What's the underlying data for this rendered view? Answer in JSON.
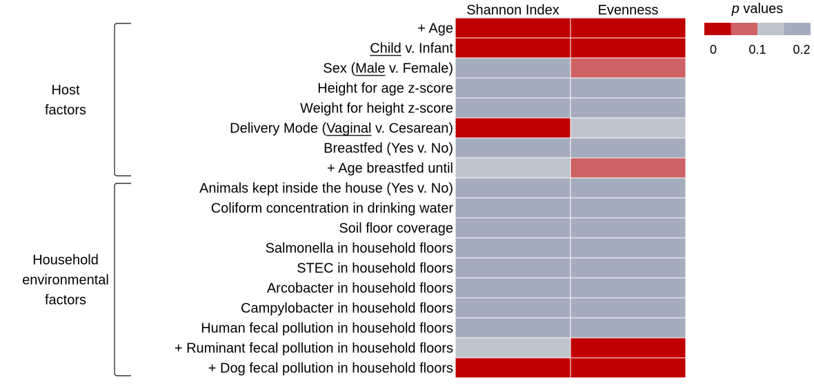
{
  "chart_data": {
    "type": "heatmap",
    "columns": [
      "Shannon Index",
      "Evenness"
    ],
    "rows": [
      {
        "label": "+ Age",
        "underline": "",
        "values": [
          0.0,
          0.0
        ]
      },
      {
        "label": "Child v. Infant",
        "underline": "Child",
        "values": [
          0.0,
          0.0
        ]
      },
      {
        "label": "Sex (Male v. Female)",
        "underline": "Male",
        "values": [
          0.2,
          0.075
        ]
      },
      {
        "label": "Height for age z-score",
        "underline": "",
        "values": [
          0.2,
          0.2
        ]
      },
      {
        "label": "Weight for height z-score",
        "underline": "",
        "values": [
          0.2,
          0.2
        ]
      },
      {
        "label": "Delivery Mode (Vaginal v. Cesarean)",
        "underline": "Vaginal",
        "values": [
          0.0,
          0.125
        ]
      },
      {
        "label": "Breastfed (Yes v. No)",
        "underline": "",
        "values": [
          0.2,
          0.2
        ]
      },
      {
        "label": "+ Age breastfed until",
        "underline": "",
        "values": [
          0.125,
          0.075
        ]
      },
      {
        "label": "Animals kept inside the house (Yes v. No)",
        "underline": "",
        "values": [
          0.2,
          0.2
        ]
      },
      {
        "label": "Coliform concentration in drinking water",
        "underline": "",
        "values": [
          0.2,
          0.2
        ]
      },
      {
        "label": "Soil floor coverage",
        "underline": "",
        "values": [
          0.2,
          0.2
        ]
      },
      {
        "label": "Salmonella in household floors",
        "underline": "",
        "values": [
          0.2,
          0.2
        ]
      },
      {
        "label": "STEC in household floors",
        "underline": "",
        "values": [
          0.2,
          0.2
        ]
      },
      {
        "label": "Arcobacter in household floors",
        "underline": "",
        "values": [
          0.2,
          0.2
        ]
      },
      {
        "label": "Campylobacter in household floors",
        "underline": "",
        "values": [
          0.2,
          0.2
        ]
      },
      {
        "label": "Human fecal pollution in household floors",
        "underline": "",
        "values": [
          0.2,
          0.2
        ]
      },
      {
        "label": "+ Ruminant fecal pollution in household floors",
        "underline": "",
        "values": [
          0.125,
          0.0
        ]
      },
      {
        "label": "+ Dog fecal pollution in household floors",
        "underline": "",
        "values": [
          0.0,
          0.0
        ]
      }
    ],
    "groups": [
      {
        "label_lines": [
          "Host",
          "factors"
        ],
        "row_start": 0,
        "row_end": 7
      },
      {
        "label_lines": [
          "Household",
          "environmental",
          "factors"
        ],
        "row_start": 8,
        "row_end": 17
      }
    ],
    "legend": {
      "title_italic": "p",
      "title_rest": " values",
      "ticks": [
        "0",
        "0.1",
        "0.2"
      ],
      "bins": [
        {
          "max": 0.05,
          "color": "#c00000"
        },
        {
          "max": 0.1,
          "color": "#cf6266"
        },
        {
          "max": 0.15,
          "color": "#bfc3cb"
        },
        {
          "max": 0.2,
          "color": "#a4acbd"
        }
      ],
      "range": [
        0,
        0.2
      ]
    }
  }
}
